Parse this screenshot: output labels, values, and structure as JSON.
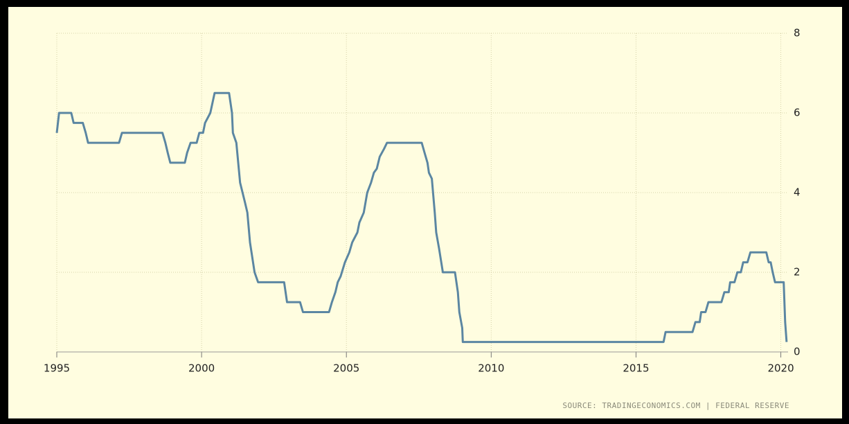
{
  "chart_data": {
    "type": "line",
    "source": "SOURCE: TRADINGECONOMICS.COM | FEDERAL RESERVE",
    "xlim": [
      1995,
      2020.25
    ],
    "xticks": [
      1995,
      2000,
      2005,
      2010,
      2015,
      2020
    ],
    "ylim": [
      0,
      8
    ],
    "yticks": [
      0,
      2,
      4,
      6,
      8
    ],
    "grid": true,
    "color": "#5b86a2",
    "x": [
      1995,
      1995.08,
      1995.5,
      1995.58,
      1995.9,
      1996.0,
      1996.08,
      1997.15,
      1997.25,
      1998.65,
      1998.75,
      1998.83,
      1998.92,
      1999.42,
      1999.5,
      1999.62,
      1999.83,
      1999.92,
      2000.05,
      2000.12,
      2000.3,
      2000.45,
      2000.95,
      2001.05,
      2001.08,
      2001.2,
      2001.33,
      2001.5,
      2001.58,
      2001.67,
      2001.83,
      2001.95,
      2002.85,
      2002.95,
      2003.4,
      2003.5,
      2004.4,
      2004.5,
      2004.62,
      2004.7,
      2004.8,
      2004.95,
      2005.1,
      2005.2,
      2005.38,
      2005.45,
      2005.6,
      2005.72,
      2005.85,
      2005.95,
      2006.05,
      2006.15,
      2006.3,
      2006.4,
      2007.6,
      2007.7,
      2007.8,
      2007.85,
      2007.95,
      2008.05,
      2008.1,
      2008.2,
      2008.33,
      2008.75,
      2008.85,
      2008.9,
      2009.0,
      2009.02,
      2015.95,
      2016.02,
      2016.95,
      2017.05,
      2017.2,
      2017.25,
      2017.4,
      2017.5,
      2017.95,
      2018.05,
      2018.2,
      2018.25,
      2018.4,
      2018.5,
      2018.62,
      2018.7,
      2018.85,
      2018.95,
      2019.5,
      2019.58,
      2019.65,
      2019.72,
      2019.8,
      2020.1,
      2020.15,
      2020.2
    ],
    "values": [
      5.5,
      6,
      6,
      5.75,
      5.75,
      5.5,
      5.25,
      5.25,
      5.5,
      5.5,
      5.25,
      5,
      4.75,
      4.75,
      5,
      5.25,
      5.25,
      5.5,
      5.5,
      5.75,
      6,
      6.5,
      6.5,
      6,
      5.5,
      5.25,
      4.25,
      3.75,
      3.5,
      2.75,
      2,
      1.75,
      1.75,
      1.25,
      1.25,
      1,
      1,
      1.25,
      1.5,
      1.75,
      1.9,
      2.25,
      2.5,
      2.75,
      3,
      3.25,
      3.5,
      4,
      4.25,
      4.5,
      4.6,
      4.9,
      5.1,
      5.25,
      5.25,
      5,
      4.75,
      4.5,
      4.35,
      3.5,
      3,
      2.6,
      2,
      2,
      1.5,
      1,
      0.6,
      0.25,
      0.25,
      0.5,
      0.5,
      0.75,
      0.75,
      1,
      1,
      1.25,
      1.25,
      1.5,
      1.5,
      1.75,
      1.75,
      2,
      2,
      2.25,
      2.25,
      2.5,
      2.5,
      2.25,
      2.25,
      2,
      1.75,
      1.75,
      0.75,
      0.25
    ]
  }
}
